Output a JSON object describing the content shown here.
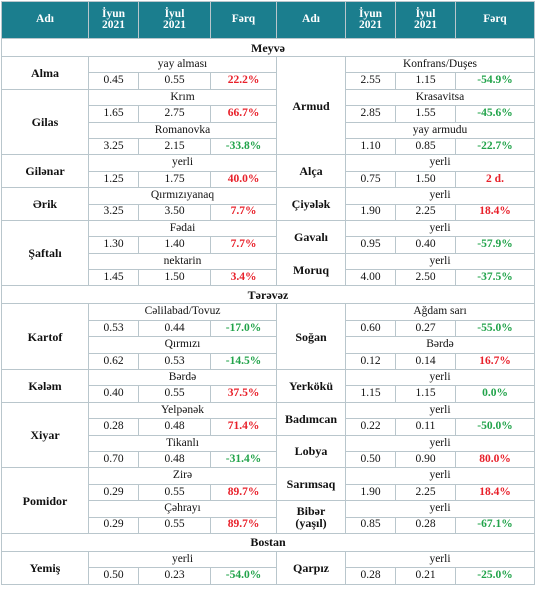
{
  "header": [
    "Adı",
    "İyun\n2021",
    "İyul\n2021",
    "Fərq",
    "Adı",
    "İyun\n2021",
    "İyul\n2021",
    "Fərq"
  ],
  "sections": [
    {
      "title": "Meyvə",
      "left": [
        {
          "name": "Alma",
          "rows": [
            {
              "variety": "yay alması",
              "june": "0.45",
              "july": "0.55",
              "diff": "22.2%"
            }
          ]
        },
        {
          "name": "Gilas",
          "rows": [
            {
              "variety": "Krım",
              "june": "1.65",
              "july": "2.75",
              "diff": "66.7%"
            },
            {
              "variety": "Romanovka",
              "june": "3.25",
              "july": "2.15",
              "diff": "-33.8%"
            }
          ]
        },
        {
          "name": "Gilənar",
          "rows": [
            {
              "variety": "yerli",
              "june": "1.25",
              "july": "1.75",
              "diff": "40.0%"
            }
          ]
        },
        {
          "name": "Ərik",
          "rows": [
            {
              "variety": "Qırmızıyanaq",
              "june": "3.25",
              "july": "3.50",
              "diff": "7.7%"
            }
          ]
        },
        {
          "name": "Şaftalı",
          "rows": [
            {
              "variety": "Fədai",
              "june": "1.30",
              "july": "1.40",
              "diff": "7.7%"
            },
            {
              "variety": "nektarin",
              "june": "1.45",
              "july": "1.50",
              "diff": "3.4%"
            }
          ]
        }
      ],
      "right": [
        {
          "name": "Armud",
          "rows": [
            {
              "variety": "Konfrans/Duşes",
              "june": "2.55",
              "july": "1.15",
              "diff": "-54.9%"
            },
            {
              "variety": "Krasavitsa",
              "june": "2.85",
              "july": "1.55",
              "diff": "-45.6%"
            },
            {
              "variety": "yay armudu",
              "june": "1.10",
              "july": "0.85",
              "diff": "-22.7%"
            }
          ]
        },
        {
          "name": "Alça",
          "rows": [
            {
              "variety": "yerli",
              "june": "0.75",
              "july": "1.50",
              "diff": "2 d."
            }
          ]
        },
        {
          "name": "Çiyələk",
          "rows": [
            {
              "variety": "yerli",
              "june": "1.90",
              "july": "2.25",
              "diff": "18.4%"
            }
          ]
        },
        {
          "name": "Gavalı",
          "rows": [
            {
              "variety": "yerli",
              "june": "0.95",
              "july": "0.40",
              "diff": "-57.9%"
            }
          ]
        },
        {
          "name": "Moruq",
          "rows": [
            {
              "variety": "yerli",
              "june": "4.00",
              "july": "2.50",
              "diff": "-37.5%"
            }
          ]
        }
      ]
    },
    {
      "title": "Tərəvəz",
      "left": [
        {
          "name": "Kartof",
          "rows": [
            {
              "variety": "Cəlilabad/Tovuz",
              "june": "0.53",
              "july": "0.44",
              "diff": "-17.0%"
            },
            {
              "variety": "Qırmızı",
              "june": "0.62",
              "july": "0.53",
              "diff": "-14.5%"
            }
          ]
        },
        {
          "name": "Kələm",
          "rows": [
            {
              "variety": "Bərdə",
              "june": "0.40",
              "july": "0.55",
              "diff": "37.5%"
            }
          ]
        },
        {
          "name": "Xiyar",
          "rows": [
            {
              "variety": "Yelpənək",
              "june": "0.28",
              "july": "0.48",
              "diff": "71.4%"
            },
            {
              "variety": "Tikanlı",
              "june": "0.70",
              "july": "0.48",
              "diff": "-31.4%"
            }
          ]
        },
        {
          "name": "Pomidor",
          "rows": [
            {
              "variety": "Zirə",
              "june": "0.29",
              "july": "0.55",
              "diff": "89.7%"
            },
            {
              "variety": "Çəhrayı",
              "june": "0.29",
              "july": "0.55",
              "diff": "89.7%"
            }
          ]
        }
      ],
      "right": [
        {
          "name": "Soğan",
          "rows": [
            {
              "variety": "Ağdam sarı",
              "june": "0.60",
              "july": "0.27",
              "diff": "-55.0%"
            },
            {
              "variety": "Bərdə",
              "june": "0.12",
              "july": "0.14",
              "diff": "16.7%"
            }
          ]
        },
        {
          "name": "Yerkökü",
          "rows": [
            {
              "variety": "yerli",
              "june": "1.15",
              "july": "1.15",
              "diff": "0.0%"
            }
          ]
        },
        {
          "name": "Badımcan",
          "rows": [
            {
              "variety": "yerli",
              "june": "0.22",
              "july": "0.11",
              "diff": "-50.0%"
            }
          ]
        },
        {
          "name": "Lobya",
          "rows": [
            {
              "variety": "yerli",
              "june": "0.50",
              "july": "0.90",
              "diff": "80.0%"
            }
          ]
        },
        {
          "name": "Sarımsaq",
          "rows": [
            {
              "variety": "yerli",
              "june": "1.90",
              "july": "2.25",
              "diff": "18.4%"
            }
          ]
        },
        {
          "name": "Bibər\n(yaşıl)",
          "rows": [
            {
              "variety": "yerli",
              "june": "0.85",
              "july": "0.28",
              "diff": "-67.1%"
            }
          ]
        }
      ]
    },
    {
      "title": "Bostan",
      "left": [
        {
          "name": "Yemiş",
          "rows": [
            {
              "variety": "yerli",
              "june": "0.50",
              "july": "0.23",
              "diff": "-54.0%"
            }
          ]
        }
      ],
      "right": [
        {
          "name": "Qarpız",
          "rows": [
            {
              "variety": "yerli",
              "june": "0.28",
              "july": "0.21",
              "diff": "-25.0%"
            }
          ]
        }
      ]
    }
  ]
}
